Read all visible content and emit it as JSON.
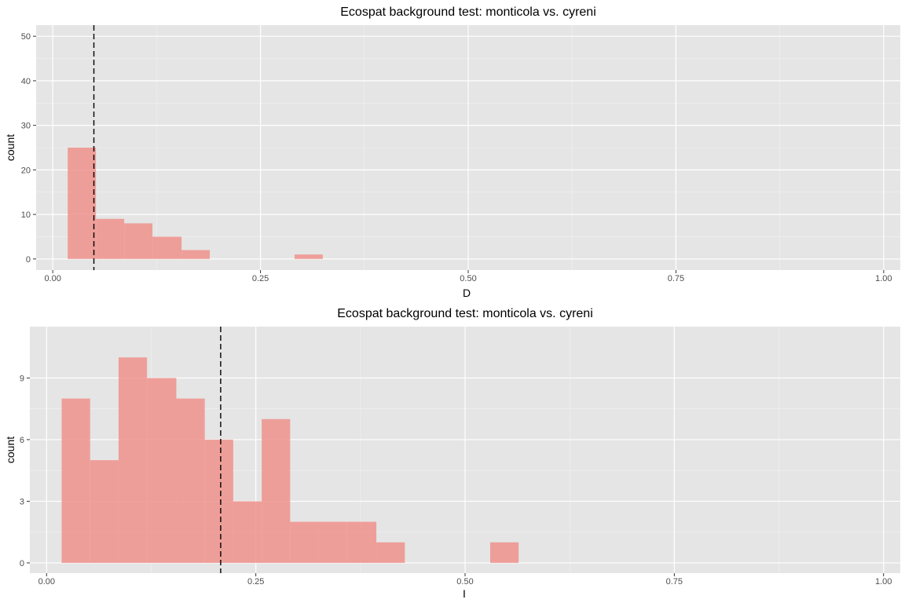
{
  "chart_data": [
    {
      "type": "bar",
      "title": "Ecospat background test: monticola vs. cyreni",
      "xlabel": "D",
      "ylabel": "count",
      "xlim": [
        -0.02,
        1.02
      ],
      "ylim": [
        -2.5,
        52.5
      ],
      "x_ticks": [
        "0.00",
        "0.25",
        "0.50",
        "0.75",
        "1.00"
      ],
      "y_ticks": [
        "0",
        "10",
        "20",
        "30",
        "40",
        "50"
      ],
      "bins": [
        {
          "x0": 0.018,
          "x1": 0.052,
          "value": 25
        },
        {
          "x0": 0.052,
          "x1": 0.086,
          "value": 9
        },
        {
          "x0": 0.086,
          "x1": 0.12,
          "value": 8
        },
        {
          "x0": 0.12,
          "x1": 0.155,
          "value": 5
        },
        {
          "x0": 0.155,
          "x1": 0.189,
          "value": 2
        },
        {
          "x0": 0.189,
          "x1": 0.223,
          "value": 0
        },
        {
          "x0": 0.223,
          "x1": 0.257,
          "value": 0
        },
        {
          "x0": 0.257,
          "x1": 0.291,
          "value": 0
        },
        {
          "x0": 0.291,
          "x1": 0.325,
          "value": 1
        }
      ],
      "observed_line": 0.0495,
      "bar_color": "#f0928c",
      "line_color": "#000000",
      "panel_color": "#e5e5e5",
      "grid": true
    },
    {
      "type": "bar",
      "title": "Ecospat background test: monticola vs. cyreni",
      "xlabel": "I",
      "ylabel": "count",
      "xlim": [
        -0.02,
        1.02
      ],
      "ylim": [
        -0.5,
        11.5
      ],
      "x_ticks": [
        "0.00",
        "0.25",
        "0.50",
        "0.75",
        "1.00"
      ],
      "y_ticks": [
        "0",
        "3",
        "6",
        "9"
      ],
      "bins": [
        {
          "x0": 0.018,
          "x1": 0.052,
          "value": 8
        },
        {
          "x0": 0.052,
          "x1": 0.086,
          "value": 5
        },
        {
          "x0": 0.086,
          "x1": 0.12,
          "value": 10
        },
        {
          "x0": 0.12,
          "x1": 0.155,
          "value": 9
        },
        {
          "x0": 0.155,
          "x1": 0.189,
          "value": 8
        },
        {
          "x0": 0.189,
          "x1": 0.223,
          "value": 6
        },
        {
          "x0": 0.223,
          "x1": 0.257,
          "value": 3
        },
        {
          "x0": 0.257,
          "x1": 0.291,
          "value": 7
        },
        {
          "x0": 0.291,
          "x1": 0.325,
          "value": 2
        },
        {
          "x0": 0.325,
          "x1": 0.359,
          "value": 2
        },
        {
          "x0": 0.359,
          "x1": 0.394,
          "value": 2
        },
        {
          "x0": 0.394,
          "x1": 0.428,
          "value": 1
        },
        {
          "x0": 0.428,
          "x1": 0.462,
          "value": 0
        },
        {
          "x0": 0.462,
          "x1": 0.496,
          "value": 0
        },
        {
          "x0": 0.496,
          "x1": 0.53,
          "value": 0
        },
        {
          "x0": 0.53,
          "x1": 0.564,
          "value": 1
        }
      ],
      "observed_line": 0.208,
      "bar_color": "#f0928c",
      "line_color": "#000000",
      "panel_color": "#e5e5e5",
      "grid": true
    }
  ]
}
